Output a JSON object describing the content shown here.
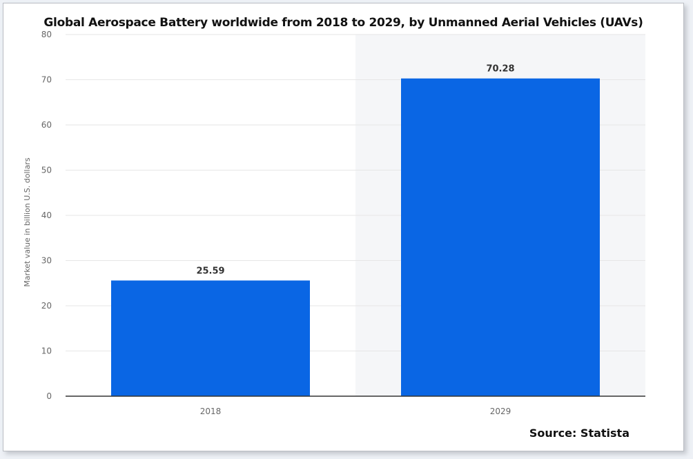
{
  "page": {
    "title": "Global Aerospace Battery worldwide from 2018 to 2029, by Unmanned Aerial Vehicles (UAVs)",
    "source": "Source: Statista"
  },
  "chart_data": {
    "type": "bar",
    "title": "Global Aerospace Battery worldwide from 2018 to 2029, by Unmanned Aerial Vehicles (UAVs)",
    "categories": [
      "2018",
      "2029"
    ],
    "values": [
      25.59,
      70.28
    ],
    "value_labels": [
      "25.59",
      "70.28"
    ],
    "xlabel": "",
    "ylabel": "Market value in billion U.S. dollars",
    "ylim": [
      0,
      80
    ],
    "yticks": [
      0,
      10,
      20,
      30,
      40,
      50,
      60,
      70,
      80
    ],
    "grid": true,
    "highlighted_category": "2029",
    "colors": {
      "bar": "#0a66e4",
      "grid": "#e6e6e6",
      "axis": "#333333",
      "highlight_band": "#f5f6f8"
    }
  }
}
